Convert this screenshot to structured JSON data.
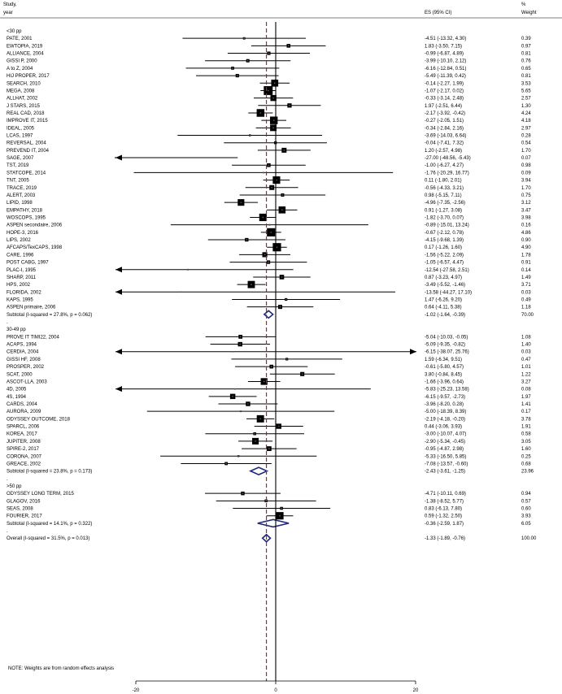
{
  "header": {
    "study_line1": "Study,",
    "study_line2": "year",
    "es_label": "ES (95% CI)",
    "weight_line1": "%",
    "weight_line2": "Weight"
  },
  "footnote": "NOTE: Weights are from random effects analysis",
  "colors": {
    "null_line": "#000000",
    "overall_line": "#b22222",
    "diamond": "#1f2a7a",
    "marker": "#000000"
  },
  "chart_data": {
    "type": "forest",
    "effect_label": "ES (95% CI)",
    "x_ticks": [
      -20,
      0,
      20
    ],
    "x_range": [
      -20,
      20
    ],
    "null_value": 0,
    "overall_estimate": -1.33,
    "groups": [
      {
        "label": "<30 pp",
        "studies": [
          {
            "name": "PATE, 2001",
            "es": -4.51,
            "lo": -13.32,
            "hi": 4.3,
            "ci": "-4.51 (-13.32, 4.30)",
            "weight": 0.39,
            "weight_text": "0.39"
          },
          {
            "name": "EWTOPIA, 2019",
            "es": 1.83,
            "lo": -3.5,
            "hi": 7.15,
            "ci": "1.83 (-3.50, 7.15)",
            "weight": 0.97,
            "weight_text": "0.97"
          },
          {
            "name": "ALLIANCE, 2004",
            "es": -0.99,
            "lo": -6.87,
            "hi": 4.89,
            "ci": "-0.99 (-6.87, 4.89)",
            "weight": 0.81,
            "weight_text": "0.81"
          },
          {
            "name": "GISSI P, 2000",
            "es": -3.99,
            "lo": -10.1,
            "hi": 2.12,
            "ci": "-3.99 (-10.10, 2.12)",
            "weight": 0.76,
            "weight_text": "0.76"
          },
          {
            "name": "A to Z, 2004",
            "es": -6.16,
            "lo": -12.84,
            "hi": 0.51,
            "ci": "-6.16 (-12.84, 0.51)",
            "weight": 0.65,
            "weight_text": "0.65"
          },
          {
            "name": "HIJ PROPER, 2017",
            "es": -5.49,
            "lo": -11.39,
            "hi": 0.42,
            "ci": "-5.49 (-11.39, 0.42)",
            "weight": 0.81,
            "weight_text": "0.81"
          },
          {
            "name": "SEARCH, 2010",
            "es": -0.14,
            "lo": -2.27,
            "hi": 1.99,
            "ci": "-0.14 (-2.27, 1.99)",
            "weight": 3.53,
            "weight_text": "3.53"
          },
          {
            "name": "MEGA, 2008",
            "es": -1.07,
            "lo": -2.17,
            "hi": 0.02,
            "ci": "-1.07 (-2.17, 0.02)",
            "weight": 5.65,
            "weight_text": "5.65"
          },
          {
            "name": "ALLHAT, 2002",
            "es": -0.33,
            "lo": -3.14,
            "hi": 2.48,
            "ci": "-0.33 (-3.14, 2.48)",
            "weight": 2.57,
            "weight_text": "2.57"
          },
          {
            "name": "J STARS, 2015",
            "es": 1.97,
            "lo": -2.51,
            "hi": 6.44,
            "ci": "1.97 (-2.51, 6.44)",
            "weight": 1.3,
            "weight_text": "1.30"
          },
          {
            "name": "REAL CAD, 2018",
            "es": -2.17,
            "lo": -3.92,
            "hi": -0.42,
            "ci": "-2.17 (-3.92, -0.42)",
            "weight": 4.24,
            "weight_text": "4.24"
          },
          {
            "name": "IMPROVE IT, 2015",
            "es": -0.27,
            "lo": -2.05,
            "hi": 1.51,
            "ci": "-0.27 (-2.05, 1.51)",
            "weight": 4.18,
            "weight_text": "4.18"
          },
          {
            "name": "IDEAL, 2005",
            "es": -0.34,
            "lo": -2.84,
            "hi": 2.16,
            "ci": "-0.34 (-2.84, 2.16)",
            "weight": 2.97,
            "weight_text": "2.97"
          },
          {
            "name": "LCAS, 1997",
            "es": -3.69,
            "lo": -14.03,
            "hi": 6.64,
            "ci": "-3.69 (-14.03, 6.64)",
            "weight": 0.28,
            "weight_text": "0.28"
          },
          {
            "name": "REVERSAL, 2004",
            "es": -0.04,
            "lo": -7.41,
            "hi": 7.32,
            "ci": "-0.04 (-7.41, 7.32)",
            "weight": 0.54,
            "weight_text": "0.54"
          },
          {
            "name": "PREVEND IT, 2004",
            "es": 1.2,
            "lo": -2.57,
            "hi": 4.98,
            "ci": "1.20 (-2.57, 4.98)",
            "weight": 1.7,
            "weight_text": "1.70"
          },
          {
            "name": "SAGE, 2007",
            "es": -27.0,
            "lo": -48.56,
            "hi": -5.43,
            "ci": "-27.00 (-48.56, -5.43)",
            "weight": 0.07,
            "weight_text": "0.07"
          },
          {
            "name": "TST, 2019",
            "es": -1.0,
            "lo": -6.27,
            "hi": 4.27,
            "ci": "-1.00 (-6.27, 4.27)",
            "weight": 0.98,
            "weight_text": "0.98"
          },
          {
            "name": "STATCOPE, 2014",
            "es": -1.76,
            "lo": -20.29,
            "hi": 16.77,
            "ci": "-1.76 (-20.29, 16.77)",
            "weight": 0.09,
            "weight_text": "0.09"
          },
          {
            "name": "TNT, 2005",
            "es": 0.11,
            "lo": -1.8,
            "hi": 2.01,
            "ci": "0.11 (-1.80, 2.01)",
            "weight": 3.94,
            "weight_text": "3.94"
          },
          {
            "name": "TRACE, 2019",
            "es": -0.56,
            "lo": -4.33,
            "hi": 3.21,
            "ci": "-0.56 (-4.33, 3.21)",
            "weight": 1.7,
            "weight_text": "1.70"
          },
          {
            "name": "ALERT, 2003",
            "es": 0.98,
            "lo": -5.15,
            "hi": 7.11,
            "ci": "0.98 (-5.15, 7.11)",
            "weight": 0.75,
            "weight_text": "0.75"
          },
          {
            "name": "LIPID, 1998",
            "es": -4.96,
            "lo": -7.35,
            "hi": -2.56,
            "ci": "-4.96 (-7.35, -2.56)",
            "weight": 3.12,
            "weight_text": "3.12"
          },
          {
            "name": "EMPATHY, 2018",
            "es": 0.91,
            "lo": -1.27,
            "hi": 3.08,
            "ci": "0.91 (-1.27, 3.08)",
            "weight": 3.47,
            "weight_text": "3.47"
          },
          {
            "name": "WOSCOPS, 1995",
            "es": -1.82,
            "lo": -3.7,
            "hi": 0.07,
            "ci": "-1.82 (-3.70, 0.07)",
            "weight": 3.98,
            "weight_text": "3.98"
          },
          {
            "name": "ASPEN secondaire, 2006",
            "es": -0.89,
            "lo": -15.01,
            "hi": 13.24,
            "ci": "-0.89 (-15.01, 13.24)",
            "weight": 0.16,
            "weight_text": "0.16"
          },
          {
            "name": "HOPE-3, 2016",
            "es": -0.67,
            "lo": -2.12,
            "hi": 0.78,
            "ci": "-0.67 (-2.12, 0.78)",
            "weight": 4.86,
            "weight_text": "4.86"
          },
          {
            "name": "LIPS, 2002",
            "es": -4.15,
            "lo": -9.68,
            "hi": 1.39,
            "ci": "-4.15 (-9.68, 1.39)",
            "weight": 0.9,
            "weight_text": "0.90"
          },
          {
            "name": "AFCAPS/TexCAPS, 1998",
            "es": 0.17,
            "lo": -1.26,
            "hi": 1.6,
            "ci": "0.17 (-1.26, 1.60)",
            "weight": 4.9,
            "weight_text": "4.90"
          },
          {
            "name": "CARE, 1996",
            "es": -1.56,
            "lo": -5.22,
            "hi": 2.09,
            "ci": "-1.56 (-5.22, 2.09)",
            "weight": 1.78,
            "weight_text": "1.78"
          },
          {
            "name": "POST CABG, 1997",
            "es": -1.05,
            "lo": -6.57,
            "hi": 4.47,
            "ci": "-1.05 (-6.57, 4.47)",
            "weight": 0.91,
            "weight_text": "0.91"
          },
          {
            "name": "PLAC-I, 1995",
            "es": -12.54,
            "lo": -27.58,
            "hi": 2.51,
            "ci": "-12.54 (-27.58, 2.51)",
            "weight": 0.14,
            "weight_text": "0.14"
          },
          {
            "name": "SHARP, 2011",
            "es": 0.87,
            "lo": -3.23,
            "hi": 4.97,
            "ci": "0.87 (-3.23, 4.97)",
            "weight": 1.49,
            "weight_text": "1.49"
          },
          {
            "name": "HPS, 2002",
            "es": -3.49,
            "lo": -5.52,
            "hi": -1.46,
            "ci": "-3.49 (-5.52, -1.46)",
            "weight": 3.71,
            "weight_text": "3.71"
          },
          {
            "name": "FLORIDA, 2002",
            "es": -13.58,
            "lo": -44.27,
            "hi": 17.1,
            "ci": "-13.58 (-44.27, 17.10)",
            "weight": 0.03,
            "weight_text": "0.03"
          },
          {
            "name": "KAPS, 1995",
            "es": 1.47,
            "lo": -6.26,
            "hi": 9.2,
            "ci": "1.47 (-6.26, 9.20)",
            "weight": 0.49,
            "weight_text": "0.49"
          },
          {
            "name": "ASPEN primaire, 2006",
            "es": 0.64,
            "lo": -4.11,
            "hi": 5.38,
            "ci": "0.64 (-4.11, 5.38)",
            "weight": 1.18,
            "weight_text": "1.18"
          }
        ],
        "subtotal": {
          "label": "Subtotal  (I-squared = 27.8%, p = 0.062)",
          "es": -1.02,
          "lo": -1.64,
          "hi": -0.39,
          "ci": "-1.02 (-1.64, -0.39)",
          "weight_text": "70.00"
        }
      },
      {
        "label": "30-49 pp",
        "studies": [
          {
            "name": "PROVE IT TIMI22, 2004",
            "es": -5.04,
            "lo": -10.03,
            "hi": -0.05,
            "ci": "-5.04 (-10.03, -0.05)",
            "weight": 1.08,
            "weight_text": "1.08"
          },
          {
            "name": "ACAPS, 1994",
            "es": -5.09,
            "lo": -9.35,
            "hi": -0.82,
            "ci": "-5.09 (-9.35, -0.82)",
            "weight": 1.4,
            "weight_text": "1.40"
          },
          {
            "name": "CERDIA, 2004",
            "es": -6.15,
            "lo": -38.07,
            "hi": 25.76,
            "ci": "-6.15 (-38.07, 25.76)",
            "weight": 0.03,
            "weight_text": "0.03"
          },
          {
            "name": "GISSI HF, 2008",
            "es": 1.59,
            "lo": -6.34,
            "hi": 9.51,
            "ci": "1.59 (-6.34, 9.51)",
            "weight": 0.47,
            "weight_text": "0.47"
          },
          {
            "name": "PROSPER, 2002",
            "es": -0.61,
            "lo": -5.8,
            "hi": 4.57,
            "ci": "-0.61 (-5.80, 4.57)",
            "weight": 1.01,
            "weight_text": "1.01"
          },
          {
            "name": "SCAT, 2000",
            "es": 3.8,
            "lo": -0.84,
            "hi": 8.45,
            "ci": "3.80 (-0.84, 8.45)",
            "weight": 1.22,
            "weight_text": "1.22"
          },
          {
            "name": "ASCOT-LLA, 2003",
            "es": -1.66,
            "lo": -3.96,
            "hi": 0.64,
            "ci": "-1.66 (-3.96, 0.64)",
            "weight": 3.27,
            "weight_text": "3.27"
          },
          {
            "name": "4D, 2005",
            "es": -5.83,
            "lo": -25.23,
            "hi": 13.58,
            "ci": "-5.83 (-25.23, 13.58)",
            "weight": 0.08,
            "weight_text": "0.08"
          },
          {
            "name": "4S, 1994",
            "es": -6.15,
            "lo": -9.57,
            "hi": -2.73,
            "ci": "-6.15 (-9.57, -2.73)",
            "weight": 1.97,
            "weight_text": "1.97"
          },
          {
            "name": "CARDS, 2004",
            "es": -3.96,
            "lo": -8.2,
            "hi": 0.28,
            "ci": "-3.96 (-8.20, 0.28)",
            "weight": 1.41,
            "weight_text": "1.41"
          },
          {
            "name": "AURORA, 2009",
            "es": -5.0,
            "lo": -18.39,
            "hi": 8.39,
            "ci": "-5.00 (-18.39, 8.39)",
            "weight": 0.17,
            "weight_text": "0.17"
          },
          {
            "name": "ODYSSEY OUTCOME, 2018",
            "es": -2.19,
            "lo": -4.18,
            "hi": -0.2,
            "ci": "-2.19 (-4.18, -0.20)",
            "weight": 3.78,
            "weight_text": "3.78"
          },
          {
            "name": "SPARCL, 2006",
            "es": 0.44,
            "lo": -3.06,
            "hi": 3.93,
            "ci": "0.44 (-3.06, 3.93)",
            "weight": 1.91,
            "weight_text": "1.91"
          },
          {
            "name": "KOREA, 2017",
            "es": -3.0,
            "lo": -10.07,
            "hi": 4.07,
            "ci": "-3.00 (-10.07, 4.07)",
            "weight": 0.58,
            "weight_text": "0.58"
          },
          {
            "name": "JUPITER, 2008",
            "es": -2.9,
            "lo": -5.34,
            "hi": -0.45,
            "ci": "-2.90 (-5.34, -0.45)",
            "weight": 3.05,
            "weight_text": "3.05"
          },
          {
            "name": "SPIRE-2, 2017",
            "es": -0.95,
            "lo": -4.87,
            "hi": 2.98,
            "ci": "-0.95 (-4.87, 2.98)",
            "weight": 1.6,
            "weight_text": "1.60"
          },
          {
            "name": "CORONA, 2007",
            "es": -5.33,
            "lo": -16.5,
            "hi": 5.85,
            "ci": "-5.33 (-16.50, 5.85)",
            "weight": 0.25,
            "weight_text": "0.25"
          },
          {
            "name": "GREACE, 2002",
            "es": -7.08,
            "lo": -13.57,
            "hi": -0.6,
            "ci": "-7.08 (-13.57, -0.60)",
            "weight": 0.68,
            "weight_text": "0.68"
          }
        ],
        "subtotal": {
          "label": "Subtotal  (I-squared = 23.8%, p = 0.173)",
          "es": -2.43,
          "lo": -3.61,
          "hi": -1.25,
          "ci": "-2.43 (-3.61, -1.25)",
          "weight_text": "23.96"
        }
      },
      {
        "label": ">50 pp",
        "studies": [
          {
            "name": "ODYSSEY LONG TERM, 2015",
            "es": -4.71,
            "lo": -10.11,
            "hi": 0.69,
            "ci": "-4.71 (-10.11, 0.69)",
            "weight": 0.94,
            "weight_text": "0.94"
          },
          {
            "name": "GLAGOV, 2016",
            "es": -1.38,
            "lo": -8.52,
            "hi": 5.77,
            "ci": "-1.38 (-8.52, 5.77)",
            "weight": 0.57,
            "weight_text": "0.57"
          },
          {
            "name": "SEAS, 2008",
            "es": 0.83,
            "lo": -6.13,
            "hi": 7.8,
            "ci": "0.83 (-6.13, 7.80)",
            "weight": 0.6,
            "weight_text": "0.60"
          },
          {
            "name": "FOURIER, 2017",
            "es": 0.59,
            "lo": -1.32,
            "hi": 2.5,
            "ci": "0.59 (-1.32, 2.50)",
            "weight": 3.93,
            "weight_text": "3.93"
          }
        ],
        "subtotal": {
          "label": "Subtotal  (I-squared = 14.1%, p = 0.322)",
          "es": -0.36,
          "lo": -2.59,
          "hi": 1.87,
          "ci": "-0.36 (-2.59, 1.87)",
          "weight_text": "6.05"
        }
      }
    ],
    "overall": {
      "label": "Overall  (I-squared = 31.5%, p = 0.013)",
      "es": -1.33,
      "lo": -1.89,
      "hi": -0.76,
      "ci": "-1.33 (-1.89, -0.76)",
      "weight_text": "100.00"
    }
  }
}
